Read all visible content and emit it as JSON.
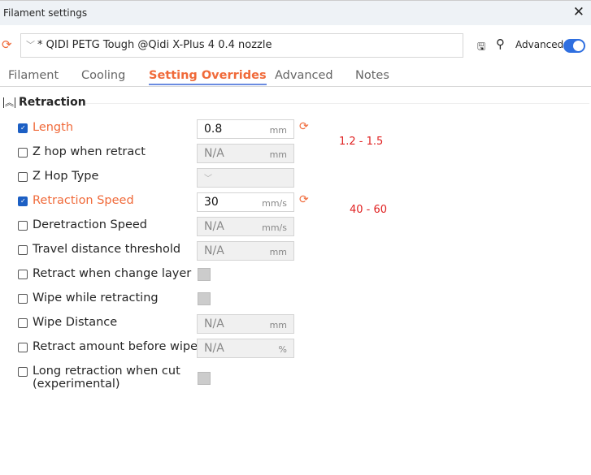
{
  "window": {
    "title": "Filament settings"
  },
  "preset": {
    "name": "* QIDI PETG Tough @Qidi X-Plus 4 0.4 nozzle"
  },
  "toolbar": {
    "advanced_label": "Advanced",
    "advanced_on": true
  },
  "tabs": [
    {
      "label": "Filament"
    },
    {
      "label": "Cooling"
    },
    {
      "label": "Setting Overrides",
      "active": true
    },
    {
      "label": "Advanced"
    },
    {
      "label": "Notes"
    }
  ],
  "section": {
    "title": "Retraction"
  },
  "rows": [
    {
      "label": "Length",
      "checked": true,
      "value": "0.8",
      "unit": "mm"
    },
    {
      "label": "Z hop when retract",
      "checked": false,
      "value": "N/A",
      "unit": "mm"
    },
    {
      "label": "Z Hop Type",
      "checked": false,
      "value": "",
      "unit": ""
    },
    {
      "label": "Retraction Speed",
      "checked": true,
      "value": "30",
      "unit": "mm/s"
    },
    {
      "label": "Deretraction Speed",
      "checked": false,
      "value": "N/A",
      "unit": "mm/s"
    },
    {
      "label": "Travel distance threshold",
      "checked": false,
      "value": "N/A",
      "unit": "mm"
    },
    {
      "label": "Retract when change layer",
      "checked": false
    },
    {
      "label": "Wipe while retracting",
      "checked": false
    },
    {
      "label": "Wipe Distance",
      "checked": false,
      "value": "N/A",
      "unit": "mm"
    },
    {
      "label": "Retract amount before wipe",
      "checked": false,
      "value": "N/A",
      "unit": "%"
    },
    {
      "label": "Long retraction when cut",
      "label2": "(experimental)",
      "checked": false
    }
  ],
  "annotations": [
    "1.2 - 1.5",
    "40 - 60"
  ],
  "colors": {
    "accent": "#f06a3a",
    "toggle": "#2f6fe0",
    "annotation": "#e02020"
  }
}
